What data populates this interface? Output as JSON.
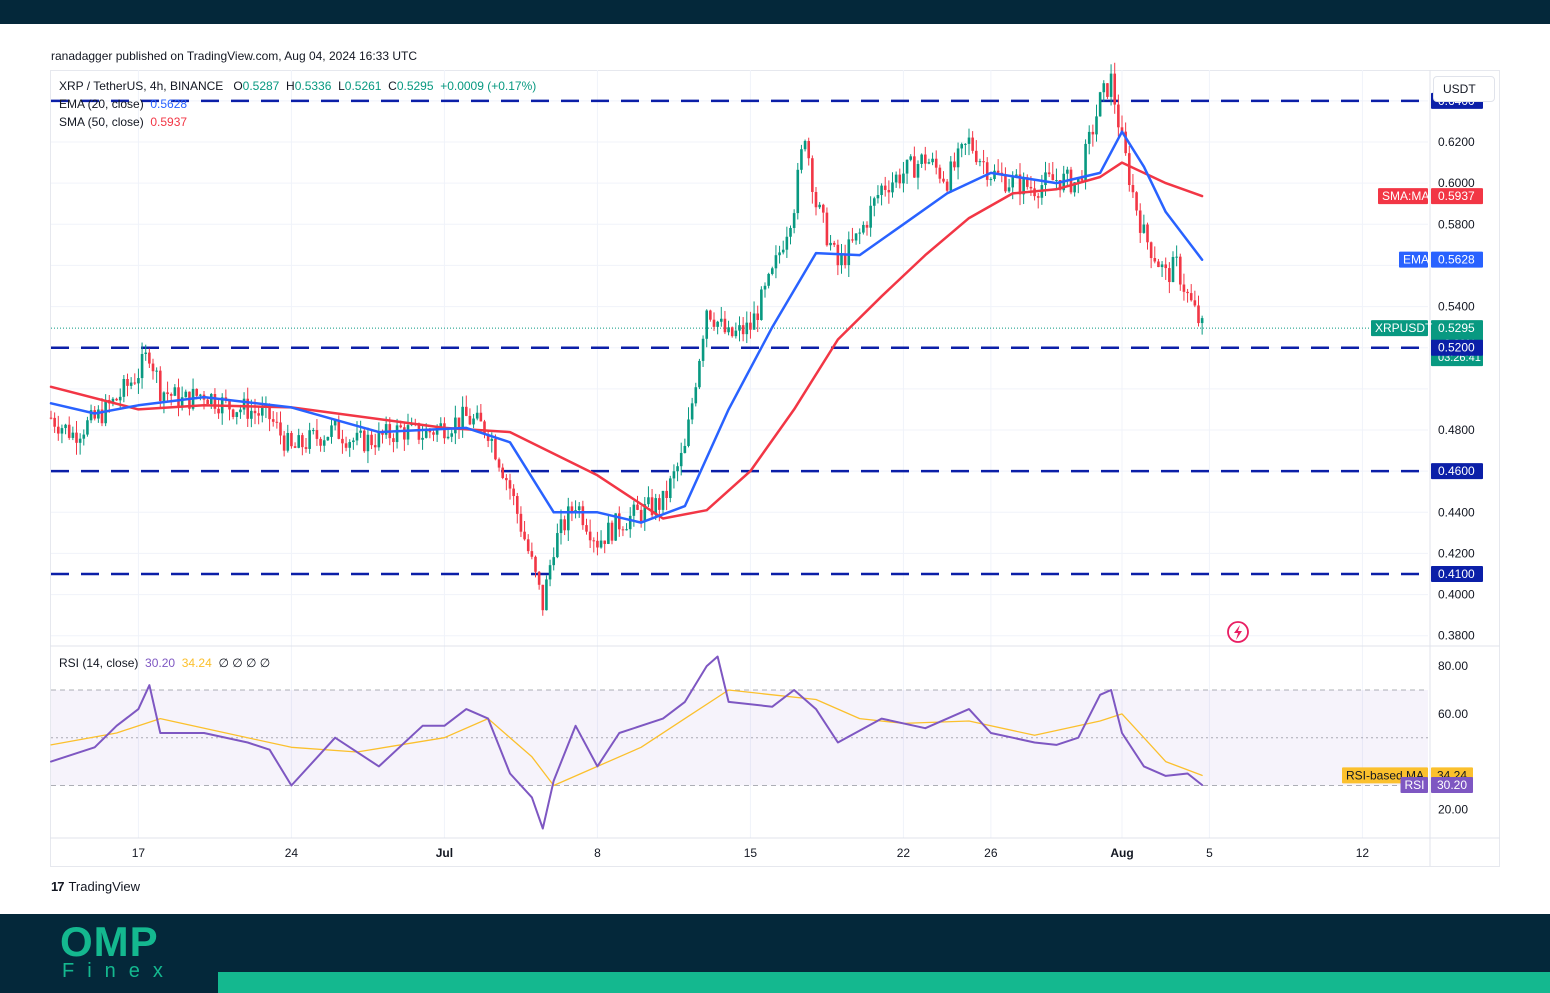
{
  "header": {
    "publisher": "ranadagger published on TradingView.com, Aug 04, 2024 16:33 UTC"
  },
  "legend": {
    "symbol": "XRP / TetherUS, 4h, BINANCE",
    "open_label": "O",
    "open": "0.5287",
    "high_label": "H",
    "high": "0.5336",
    "low_label": "L",
    "low": "0.5261",
    "close_label": "C",
    "close": "0.5295",
    "change": "+0.0009 (+0.17%)",
    "ema_label": "EMA (20, close)",
    "ema_value": "0.5628",
    "sma_label": "SMA (50, close)",
    "sma_value": "0.5937",
    "rsi_label": "RSI (14, close)",
    "rsi_value": "30.20",
    "rsi_ma_value": "34.24",
    "rsi_extra": "∅ ∅ ∅ ∅"
  },
  "currency": "USDT",
  "price_axis": {
    "ticks": [
      "0.6200",
      "0.6000",
      "0.5800",
      "0.5400",
      "0.4800",
      "0.4400",
      "0.4200",
      "0.4000",
      "0.3800"
    ]
  },
  "price_labels": [
    {
      "name": "",
      "value": "0.6400",
      "price": 0.64,
      "color": "#0b1fa8"
    },
    {
      "name": "SMA:MA",
      "value": "0.5937",
      "price": 0.5937,
      "color": "#f23645"
    },
    {
      "name": "EMA",
      "value": "0.5628",
      "price": 0.5628,
      "color": "#2962ff"
    },
    {
      "name": "XRPUSDT",
      "value": "0.5295",
      "price": 0.5295,
      "color": "#089981",
      "change": "+9.29%",
      "countdown": "03:26:41"
    },
    {
      "name": "",
      "value": "0.5200",
      "price": 0.52,
      "color": "#0b1fa8"
    },
    {
      "name": "",
      "value": "0.4600",
      "price": 0.46,
      "color": "#0b1fa8"
    },
    {
      "name": "",
      "value": "0.4100",
      "price": 0.41,
      "color": "#0b1fa8"
    }
  ],
  "rsi_axis": {
    "ticks": [
      "80.00",
      "60.00",
      "20.00"
    ]
  },
  "rsi_labels": [
    {
      "name": "RSI-based MA",
      "value": "34.24",
      "level": 34.24,
      "color": "#fbc02d",
      "text": "#131722"
    },
    {
      "name": "RSI",
      "value": "30.20",
      "level": 30.2,
      "color": "#7e57c2",
      "text": "#ffffff"
    }
  ],
  "time_axis": {
    "labels": [
      {
        "t": "17",
        "day": 17,
        "bold": false
      },
      {
        "t": "24",
        "day": 24,
        "bold": false
      },
      {
        "t": "Jul",
        "day": 31,
        "bold": true
      },
      {
        "t": "8",
        "day": 38,
        "bold": false
      },
      {
        "t": "15",
        "day": 45,
        "bold": false
      },
      {
        "t": "22",
        "day": 52,
        "bold": false
      },
      {
        "t": "26",
        "day": 56,
        "bold": false
      },
      {
        "t": "Aug",
        "day": 62,
        "bold": true
      },
      {
        "t": "5",
        "day": 66,
        "bold": false
      },
      {
        "t": "12",
        "day": 73,
        "bold": false
      }
    ]
  },
  "brand": {
    "tradingview": "TradingView"
  },
  "footer": {
    "logo": "OMP",
    "sub": "Finex"
  },
  "colors": {
    "up": "#089981",
    "down": "#f23645",
    "ema": "#2962ff",
    "sma": "#f23645",
    "level_line": "#0b1fa8",
    "rsi": "#7e57c2",
    "rsi_ma": "#fbc02d"
  },
  "chart_data": {
    "type": "line",
    "title": "XRP / TetherUS, 4h, BINANCE",
    "xlabel": "",
    "ylabel": "",
    "x_range": [
      "2024-06-13",
      "2024-08-15"
    ],
    "ylim": [
      0.375,
      0.655
    ],
    "horizontal_levels": [
      0.64,
      0.52,
      0.46,
      0.41
    ],
    "last_price": 0.5295,
    "series": [
      {
        "name": "XRPUSDT",
        "points": [
          [
            "2024-06-13",
            0.486
          ],
          [
            "2024-06-14",
            0.478
          ],
          [
            "2024-06-15",
            0.485
          ],
          [
            "2024-06-16",
            0.495
          ],
          [
            "2024-06-17",
            0.508
          ],
          [
            "2024-06-17T12:00",
            0.518
          ],
          [
            "2024-06-18",
            0.5
          ],
          [
            "2024-06-19",
            0.494
          ],
          [
            "2024-06-20",
            0.498
          ],
          [
            "2024-06-21",
            0.492
          ],
          [
            "2024-06-22",
            0.49
          ],
          [
            "2024-06-23",
            0.486
          ],
          [
            "2024-06-24",
            0.47
          ],
          [
            "2024-06-25",
            0.476
          ],
          [
            "2024-06-26",
            0.48
          ],
          [
            "2024-06-27",
            0.474
          ],
          [
            "2024-06-28",
            0.476
          ],
          [
            "2024-06-29",
            0.48
          ],
          [
            "2024-06-30",
            0.478
          ],
          [
            "2024-07-01",
            0.482
          ],
          [
            "2024-07-02",
            0.486
          ],
          [
            "2024-07-03",
            0.48
          ],
          [
            "2024-07-04",
            0.452
          ],
          [
            "2024-07-05",
            0.415
          ],
          [
            "2024-07-05T12:00",
            0.395
          ],
          [
            "2024-07-06",
            0.424
          ],
          [
            "2024-07-07",
            0.445
          ],
          [
            "2024-07-08",
            0.426
          ],
          [
            "2024-07-09",
            0.435
          ],
          [
            "2024-07-10",
            0.44
          ],
          [
            "2024-07-11",
            0.445
          ],
          [
            "2024-07-12",
            0.47
          ],
          [
            "2024-07-13",
            0.54
          ],
          [
            "2024-07-14",
            0.525
          ],
          [
            "2024-07-15",
            0.53
          ],
          [
            "2024-07-16",
            0.555
          ],
          [
            "2024-07-17",
            0.59
          ],
          [
            "2024-07-17T12:00",
            0.625
          ],
          [
            "2024-07-18",
            0.59
          ],
          [
            "2024-07-19",
            0.56
          ],
          [
            "2024-07-20",
            0.575
          ],
          [
            "2024-07-21",
            0.598
          ],
          [
            "2024-07-22",
            0.605
          ],
          [
            "2024-07-23",
            0.612
          ],
          [
            "2024-07-24",
            0.602
          ],
          [
            "2024-07-25",
            0.62
          ],
          [
            "2024-07-26",
            0.605
          ],
          [
            "2024-07-27",
            0.6
          ],
          [
            "2024-07-28",
            0.598
          ],
          [
            "2024-07-29",
            0.602
          ],
          [
            "2024-07-30",
            0.6
          ],
          [
            "2024-07-31",
            0.64
          ],
          [
            "2024-07-31T12:00",
            0.65
          ],
          [
            "2024-08-01",
            0.62
          ],
          [
            "2024-08-01T12:00",
            0.595
          ],
          [
            "2024-08-02",
            0.575
          ],
          [
            "2024-08-03",
            0.555
          ],
          [
            "2024-08-03T12:00",
            0.56
          ],
          [
            "2024-08-04",
            0.545
          ],
          [
            "2024-08-04T16:00",
            0.5295
          ]
        ]
      },
      {
        "name": "EMA (20, close)",
        "points": [
          [
            "2024-06-13",
            0.493
          ],
          [
            "2024-06-15",
            0.488
          ],
          [
            "2024-06-17",
            0.492
          ],
          [
            "2024-06-20",
            0.496
          ],
          [
            "2024-06-24",
            0.491
          ],
          [
            "2024-06-28",
            0.479
          ],
          [
            "2024-07-02",
            0.481
          ],
          [
            "2024-07-04",
            0.474
          ],
          [
            "2024-07-06",
            0.44
          ],
          [
            "2024-07-08",
            0.44
          ],
          [
            "2024-07-10",
            0.435
          ],
          [
            "2024-07-12",
            0.443
          ],
          [
            "2024-07-14",
            0.49
          ],
          [
            "2024-07-16",
            0.53
          ],
          [
            "2024-07-18",
            0.566
          ],
          [
            "2024-07-20",
            0.565
          ],
          [
            "2024-07-22",
            0.58
          ],
          [
            "2024-07-24",
            0.595
          ],
          [
            "2024-07-26",
            0.605
          ],
          [
            "2024-07-29",
            0.6
          ],
          [
            "2024-07-31",
            0.605
          ],
          [
            "2024-08-01",
            0.625
          ],
          [
            "2024-08-02",
            0.608
          ],
          [
            "2024-08-03",
            0.586
          ],
          [
            "2024-08-04T16:00",
            0.5628
          ]
        ]
      },
      {
        "name": "SMA (50, close)",
        "points": [
          [
            "2024-06-13",
            0.501
          ],
          [
            "2024-06-17",
            0.49
          ],
          [
            "2024-06-20",
            0.492
          ],
          [
            "2024-06-24",
            0.491
          ],
          [
            "2024-07-01",
            0.481
          ],
          [
            "2024-07-04",
            0.479
          ],
          [
            "2024-07-08",
            0.458
          ],
          [
            "2024-07-11",
            0.437
          ],
          [
            "2024-07-13",
            0.441
          ],
          [
            "2024-07-15",
            0.46
          ],
          [
            "2024-07-17",
            0.49
          ],
          [
            "2024-07-19",
            0.524
          ],
          [
            "2024-07-21",
            0.545
          ],
          [
            "2024-07-23",
            0.565
          ],
          [
            "2024-07-25",
            0.583
          ],
          [
            "2024-07-27",
            0.595
          ],
          [
            "2024-07-29",
            0.597
          ],
          [
            "2024-07-31",
            0.603
          ],
          [
            "2024-08-01",
            0.61
          ],
          [
            "2024-08-02",
            0.605
          ],
          [
            "2024-08-03",
            0.6
          ],
          [
            "2024-08-04T16:00",
            0.5937
          ]
        ]
      },
      {
        "name": "RSI (14, close)",
        "points": [
          [
            "2024-06-13",
            40
          ],
          [
            "2024-06-15",
            46
          ],
          [
            "2024-06-16",
            55
          ],
          [
            "2024-06-17",
            62
          ],
          [
            "2024-06-17T12:00",
            72
          ],
          [
            "2024-06-18",
            52
          ],
          [
            "2024-06-20",
            52
          ],
          [
            "2024-06-22",
            48
          ],
          [
            "2024-06-23",
            45
          ],
          [
            "2024-06-24",
            30
          ],
          [
            "2024-06-26",
            50
          ],
          [
            "2024-06-28",
            38
          ],
          [
            "2024-06-30",
            55
          ],
          [
            "2024-07-01",
            55
          ],
          [
            "2024-07-02",
            62
          ],
          [
            "2024-07-03",
            58
          ],
          [
            "2024-07-04",
            35
          ],
          [
            "2024-07-05",
            25
          ],
          [
            "2024-07-05T12:00",
            12
          ],
          [
            "2024-07-06",
            32
          ],
          [
            "2024-07-07",
            55
          ],
          [
            "2024-07-08",
            38
          ],
          [
            "2024-07-09",
            52
          ],
          [
            "2024-07-11",
            58
          ],
          [
            "2024-07-12",
            65
          ],
          [
            "2024-07-13",
            80
          ],
          [
            "2024-07-13T12:00",
            84
          ],
          [
            "2024-07-14",
            65
          ],
          [
            "2024-07-16",
            63
          ],
          [
            "2024-07-17",
            70
          ],
          [
            "2024-07-18",
            62
          ],
          [
            "2024-07-19",
            48
          ],
          [
            "2024-07-21",
            58
          ],
          [
            "2024-07-23",
            54
          ],
          [
            "2024-07-25",
            62
          ],
          [
            "2024-07-26",
            52
          ],
          [
            "2024-07-27",
            50
          ],
          [
            "2024-07-28",
            48
          ],
          [
            "2024-07-29",
            47
          ],
          [
            "2024-07-30",
            50
          ],
          [
            "2024-07-31",
            68
          ],
          [
            "2024-07-31T12:00",
            70
          ],
          [
            "2024-08-01",
            52
          ],
          [
            "2024-08-02",
            38
          ],
          [
            "2024-08-03",
            34
          ],
          [
            "2024-08-04",
            35
          ],
          [
            "2024-08-04T16:00",
            30.2
          ]
        ]
      },
      {
        "name": "RSI-based MA",
        "points": [
          [
            "2024-06-13",
            47
          ],
          [
            "2024-06-16",
            52
          ],
          [
            "2024-06-18",
            58
          ],
          [
            "2024-06-21",
            52
          ],
          [
            "2024-06-24",
            46
          ],
          [
            "2024-06-27",
            44
          ],
          [
            "2024-07-01",
            50
          ],
          [
            "2024-07-03",
            58
          ],
          [
            "2024-07-05",
            42
          ],
          [
            "2024-07-06",
            30
          ],
          [
            "2024-07-08",
            38
          ],
          [
            "2024-07-10",
            46
          ],
          [
            "2024-07-12",
            58
          ],
          [
            "2024-07-14",
            70
          ],
          [
            "2024-07-16",
            68
          ],
          [
            "2024-07-18",
            66
          ],
          [
            "2024-07-20",
            58
          ],
          [
            "2024-07-22",
            56
          ],
          [
            "2024-07-25",
            57
          ],
          [
            "2024-07-28",
            51
          ],
          [
            "2024-07-31",
            57
          ],
          [
            "2024-08-01",
            60
          ],
          [
            "2024-08-02",
            50
          ],
          [
            "2024-08-03",
            40
          ],
          [
            "2024-08-04T16:00",
            34.24
          ]
        ]
      }
    ],
    "rsi_bands": [
      70,
      50,
      30
    ]
  }
}
